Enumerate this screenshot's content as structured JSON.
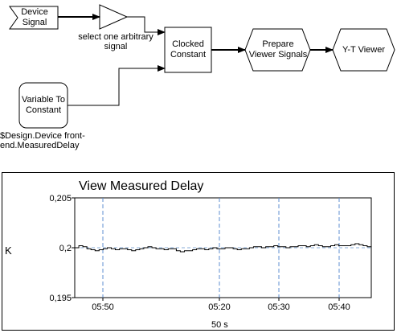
{
  "diagram": {
    "device_signal": "Device\nSignal",
    "select_signal": "select one arbitrary\nsignal",
    "clocked_constant": "Clocked\nConstant",
    "prepare_viewer": "Prepare\nViewer Signals",
    "yt_viewer": "Y-T Viewer",
    "variable_to_constant": "Variable To\nConstant",
    "variable_path": "$Design.Device front-\nend.MeasuredDelay"
  },
  "viewer": {
    "title": "View Measured Delay",
    "unit_label": "K",
    "time_span": "50 s"
  },
  "chart_data": {
    "type": "line",
    "title": "View Measured Delay",
    "ylabel": "K",
    "xlabel": "50 s",
    "ylim": [
      0.195,
      0.205
    ],
    "y_ticks": [
      "0,205",
      "0,2",
      "0,195"
    ],
    "x_ticks": [
      "05:50",
      "05:20",
      "05:30",
      "05:40"
    ],
    "grid": "dashed vertical lines at x tick positions, dashed line at 0,2",
    "series": [
      {
        "values": [
          0.2,
          0.2002,
          0.2001,
          0.1999,
          0.1998,
          0.1997,
          0.1998,
          0.1999,
          0.2,
          0.1999,
          0.1998,
          0.1999,
          0.1999,
          0.1998,
          0.1997,
          0.1998,
          0.1999,
          0.2,
          0.2001,
          0.2,
          0.1999,
          0.1999,
          0.1998,
          0.1999,
          0.1999,
          0.1997,
          0.1996,
          0.1997,
          0.1997,
          0.1998,
          0.1999,
          0.1999,
          0.1998,
          0.1999,
          0.2,
          0.1999,
          0.1999,
          0.2,
          0.2,
          0.1999,
          0.1998,
          0.1999,
          0.1999,
          0.2,
          0.2001,
          0.2001,
          0.2,
          0.2001,
          0.2001,
          0.2002,
          0.2001,
          0.2001,
          0.2,
          0.2001,
          0.2001,
          0.2002,
          0.2002,
          0.2001,
          0.2002,
          0.2003,
          0.2002,
          0.2001,
          0.2001,
          0.2002,
          0.2003,
          0.2002,
          0.2002,
          0.2002,
          0.2003,
          0.2004,
          0.2003,
          0.2002,
          0.2001,
          0.2
        ]
      }
    ]
  }
}
